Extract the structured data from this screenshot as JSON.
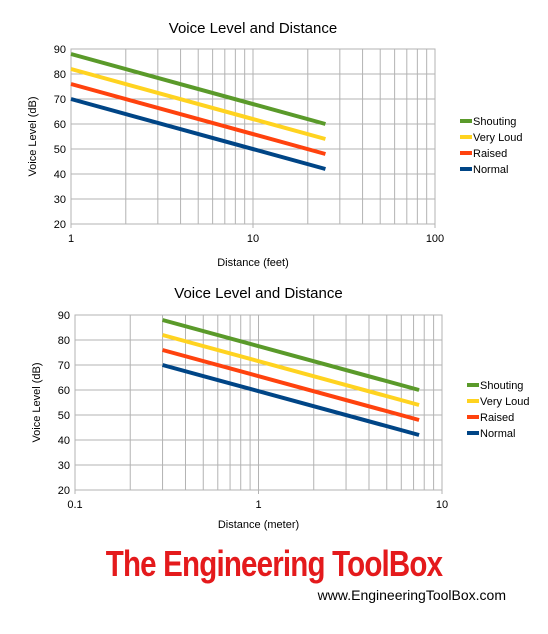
{
  "chart_data": [
    {
      "type": "line",
      "title": "Voice Level and Distance",
      "xlabel": "Distance (feet)",
      "ylabel": "Voice Level (dB)",
      "xscale": "log",
      "xlim": [
        1,
        100
      ],
      "ylim": [
        20,
        90
      ],
      "ytick_labels": [
        "20",
        "30",
        "40",
        "50",
        "60",
        "70",
        "80",
        "90"
      ],
      "xtick_labels": [
        "1",
        "10",
        "100"
      ],
      "grid": true,
      "legend_position": "right",
      "series": [
        {
          "name": "Shouting",
          "color": "#5a9a2a",
          "points": [
            [
              1,
              88
            ],
            [
              25,
              60
            ]
          ]
        },
        {
          "name": "Very Loud",
          "color": "#ffd320",
          "points": [
            [
              1,
              82
            ],
            [
              25,
              54
            ]
          ]
        },
        {
          "name": "Raised",
          "color": "#ff420e",
          "points": [
            [
              1,
              76
            ],
            [
              25,
              48
            ]
          ]
        },
        {
          "name": "Normal",
          "color": "#004586",
          "points": [
            [
              1,
              70
            ],
            [
              25,
              42
            ]
          ]
        }
      ]
    },
    {
      "type": "line",
      "title": "Voice Level and Distance",
      "xlabel": "Distance (meter)",
      "ylabel": "Voice Level (dB)",
      "xscale": "log",
      "xlim": [
        0.1,
        10
      ],
      "ylim": [
        20,
        90
      ],
      "ytick_labels": [
        "20",
        "30",
        "40",
        "50",
        "60",
        "70",
        "80",
        "90"
      ],
      "xtick_labels": [
        "0.1",
        "1",
        "10"
      ],
      "grid": true,
      "legend_position": "right",
      "series": [
        {
          "name": "Shouting",
          "color": "#5a9a2a",
          "points": [
            [
              0.3,
              88
            ],
            [
              7.5,
              60
            ]
          ]
        },
        {
          "name": "Very Loud",
          "color": "#ffd320",
          "points": [
            [
              0.3,
              82
            ],
            [
              7.5,
              54
            ]
          ]
        },
        {
          "name": "Raised",
          "color": "#ff420e",
          "points": [
            [
              0.3,
              76
            ],
            [
              7.5,
              48
            ]
          ]
        },
        {
          "name": "Normal",
          "color": "#004586",
          "points": [
            [
              0.3,
              70
            ],
            [
              7.5,
              42
            ]
          ]
        }
      ]
    }
  ],
  "watermark": {
    "title": "The Engineering ToolBox",
    "url": "www.EngineeringToolBox.com"
  }
}
